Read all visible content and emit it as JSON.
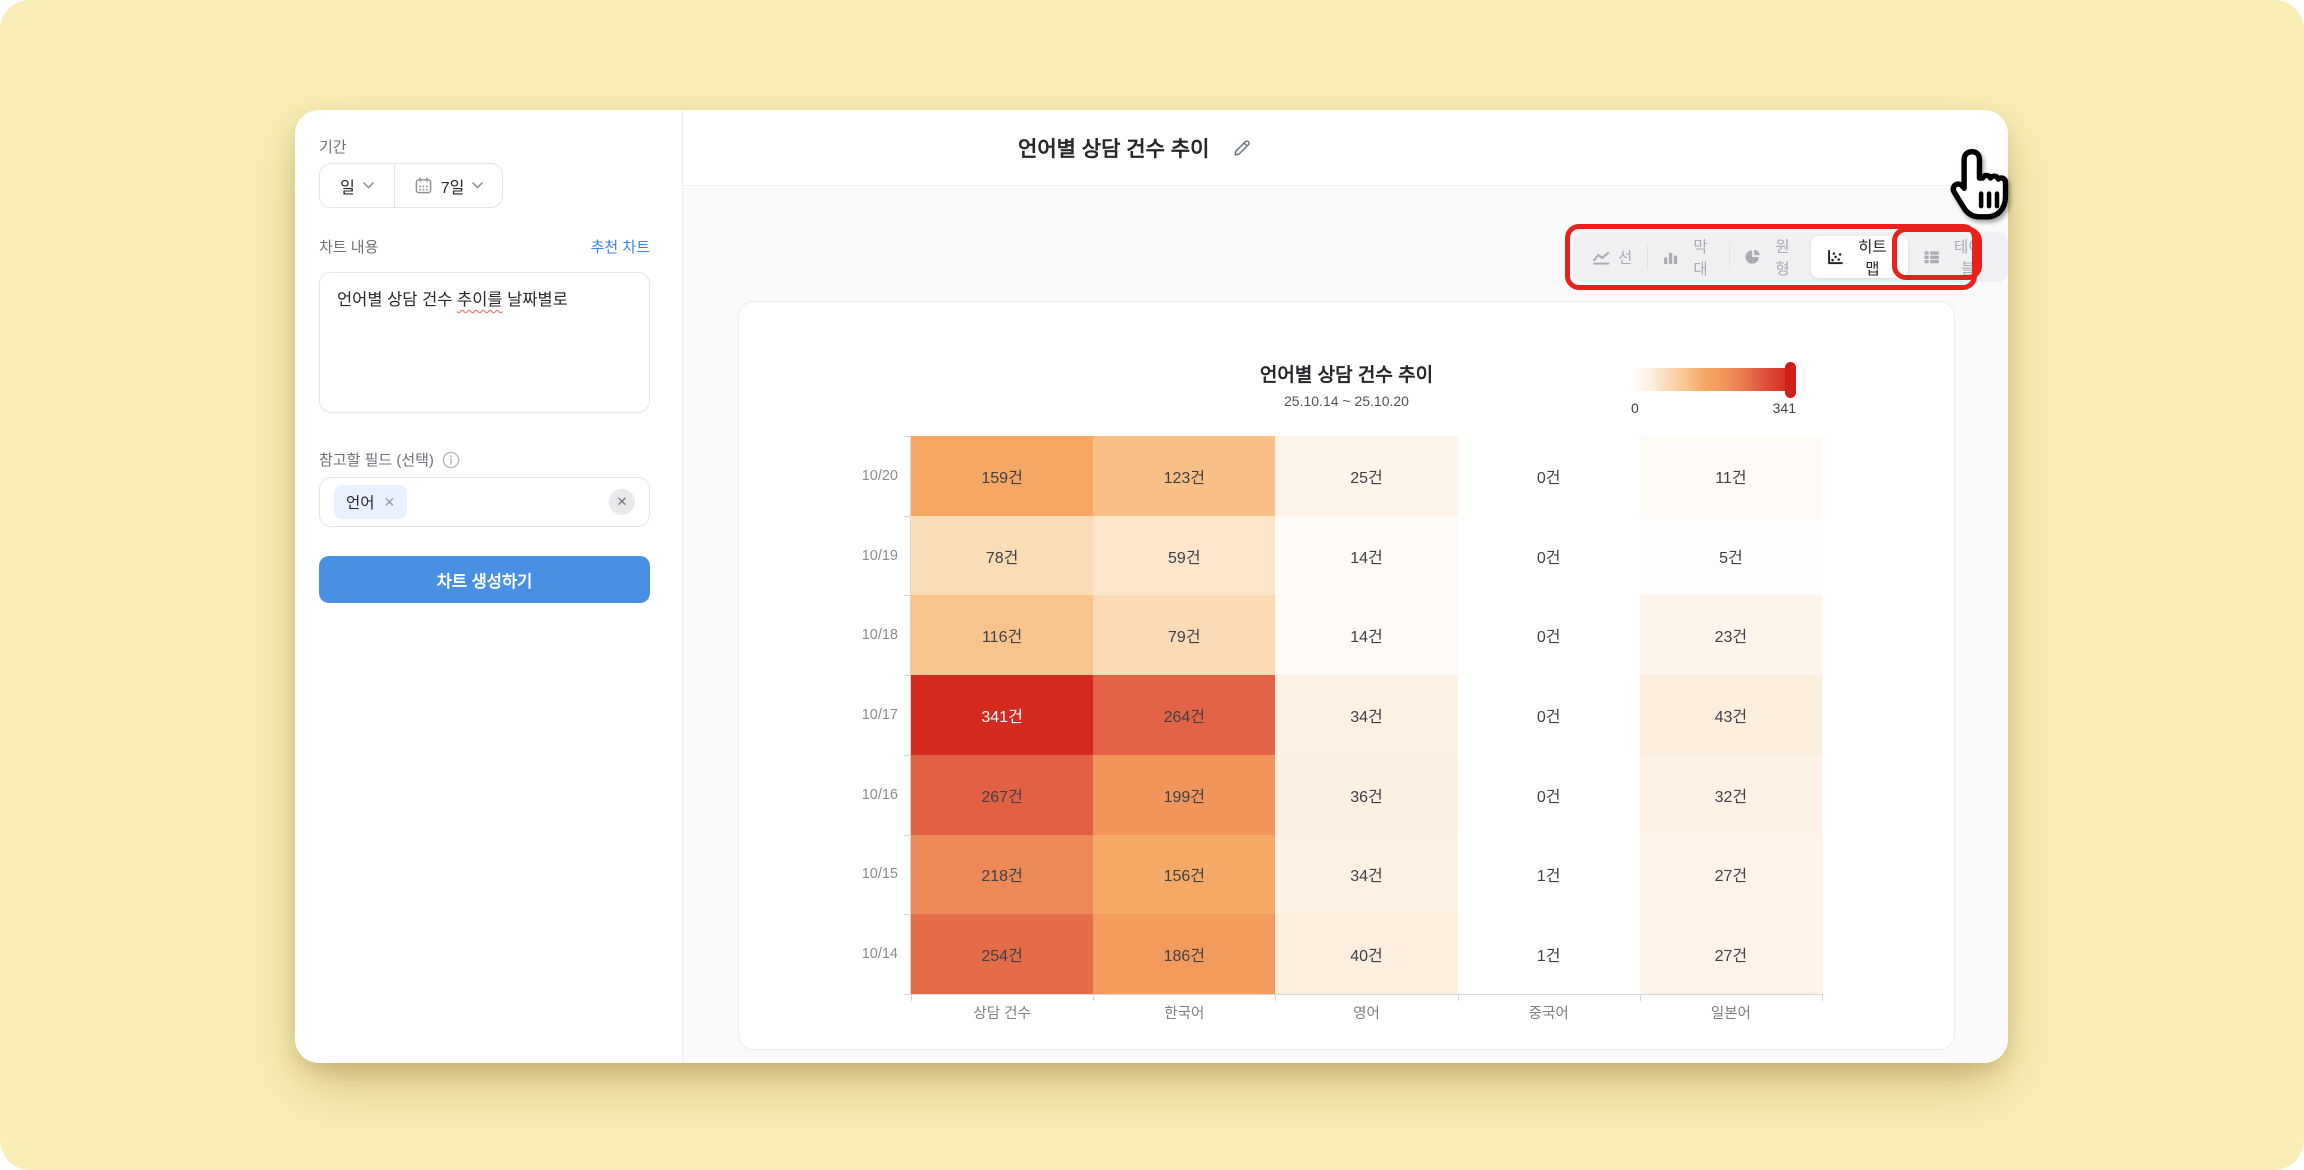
{
  "ui_colors": {
    "accent_blue": "#4a90e2",
    "link_blue": "#3b82f6",
    "highlight_red": "#e8211d"
  },
  "sidebar": {
    "period_label": "기간",
    "unit_select_value": "일",
    "range_select_value": "7일",
    "content_label": "차트 내용",
    "recommend_link": "추천 차트",
    "content_before": "언어별 상담 건수 ",
    "content_misspelled": "추이를",
    "content_after": " 날짜별로",
    "fields_label": "참고할 필드 (선택)",
    "field_tag": "언어",
    "create_button": "차트 생성하기"
  },
  "header": {
    "title": "언어별 상담 건수 추이"
  },
  "chart_tabs": [
    {
      "id": "line",
      "label": "선",
      "active": false
    },
    {
      "id": "bar",
      "label": "막대",
      "active": false
    },
    {
      "id": "pie",
      "label": "원형",
      "active": false
    },
    {
      "id": "heatmap",
      "label": "히트맵",
      "active": true
    },
    {
      "id": "table",
      "label": "테이블",
      "active": false
    }
  ],
  "chart_data": {
    "type": "heatmap",
    "title": "언어별 상담 건수 추이",
    "subtitle": "25.10.14 ~ 25.10.20",
    "columns": [
      "상담 건수",
      "한국어",
      "영어",
      "중국어",
      "일본어"
    ],
    "rows": [
      "10/20",
      "10/19",
      "10/18",
      "10/17",
      "10/16",
      "10/15",
      "10/14"
    ],
    "values": [
      [
        159,
        123,
        25,
        0,
        11
      ],
      [
        78,
        59,
        14,
        0,
        5
      ],
      [
        116,
        79,
        14,
        0,
        23
      ],
      [
        341,
        264,
        34,
        0,
        43
      ],
      [
        267,
        199,
        36,
        0,
        32
      ],
      [
        218,
        156,
        34,
        1,
        27
      ],
      [
        254,
        186,
        40,
        1,
        27
      ]
    ],
    "unit": "건",
    "scale": {
      "min": 0,
      "max": 341,
      "min_label": "0",
      "max_label": "341"
    },
    "colors": {
      "ramp": [
        [
          0,
          "#ffffff"
        ],
        [
          0.04,
          "#fefaf5"
        ],
        [
          0.08,
          "#fdf3e8"
        ],
        [
          0.12,
          "#fcefdf"
        ],
        [
          0.25,
          "#fad8ae"
        ],
        [
          0.35,
          "#f8c28b"
        ],
        [
          0.47,
          "#f5a662"
        ],
        [
          0.6,
          "#f0935a"
        ],
        [
          0.7,
          "#e97a4f"
        ],
        [
          0.8,
          "#e05b41"
        ],
        [
          1,
          "#d3291e"
        ]
      ],
      "handle": "#ce1f1a"
    },
    "legend_position": "top-right",
    "grid": false
  }
}
